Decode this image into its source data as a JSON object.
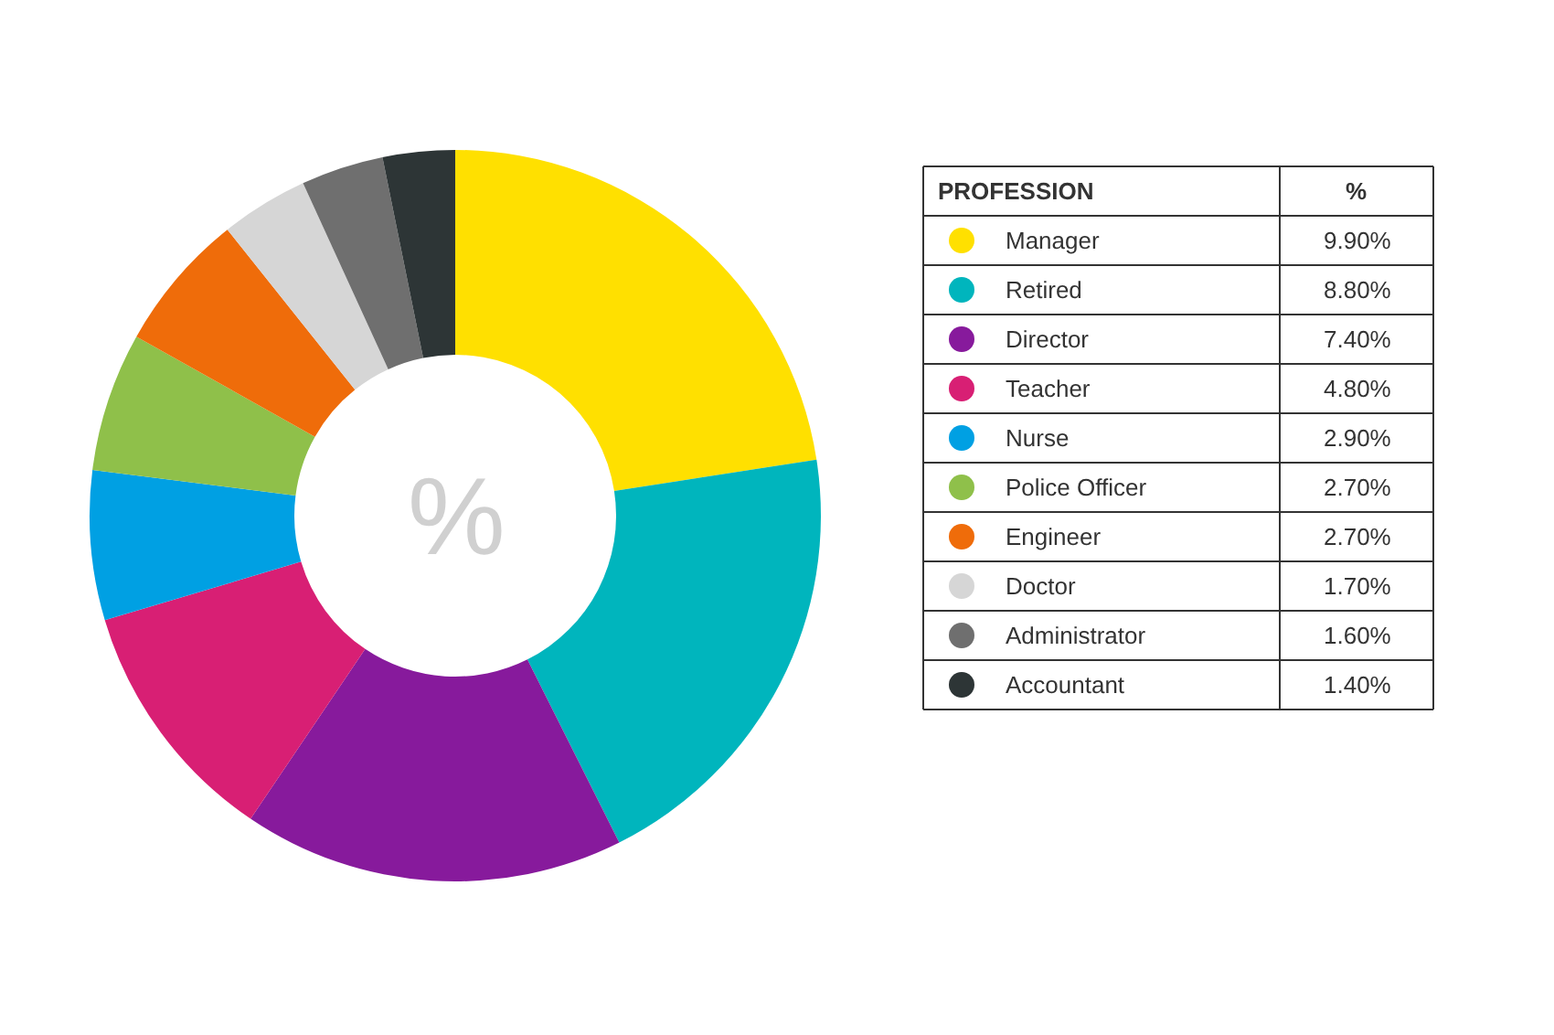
{
  "chart_data": {
    "type": "donut",
    "legend_title": "PROFESSION",
    "legend": "right",
    "categories": [
      "Manager",
      "Retired",
      "Director",
      "Teacher",
      "Nurse",
      "Police Officer",
      "Engineer",
      "Doctor",
      "Administrator",
      "Accountant"
    ],
    "values": [
      9.9,
      8.8,
      7.4,
      4.8,
      2.9,
      2.7,
      2.7,
      1.7,
      1.6,
      1.4
    ],
    "value_labels": [
      "9.90%",
      "8.80%",
      "7.40%",
      "4.80%",
      "2.90%",
      "2.70%",
      "2.70%",
      "1.70%",
      "1.60%",
      "1.40%"
    ],
    "colors": [
      "#ffe000",
      "#00b5bd",
      "#871a9c",
      "#d81f74",
      "#00a0e3",
      "#8fc04a",
      "#ef6c0a",
      "#d6d6d6",
      "#6f6f6f",
      "#2d3536"
    ],
    "annotations": [
      "%",
      "%"
    ]
  }
}
